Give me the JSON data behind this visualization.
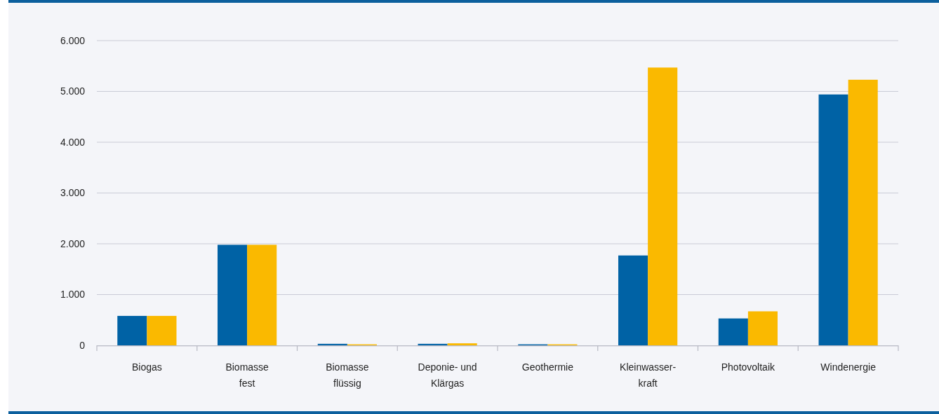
{
  "chart_data": {
    "type": "bar",
    "categories": [
      "Biogas",
      "Biomasse fest",
      "Biomasse flüssig",
      "Deponie- und Klärgas",
      "Geothermie",
      "Kleinwasser-kraft",
      "Photovoltaik",
      "Windenergie"
    ],
    "series": [
      {
        "color": "#0062a5",
        "values": [
          580,
          1980,
          30,
          30,
          20,
          1770,
          530,
          4940
        ]
      },
      {
        "color": "#fab900",
        "values": [
          580,
          1980,
          20,
          40,
          20,
          5470,
          670,
          5230
        ]
      }
    ],
    "ylim": [
      0,
      6000
    ],
    "yticks": [
      {
        "value": 0,
        "label": "0"
      },
      {
        "value": 1000,
        "label": "1.000"
      },
      {
        "value": 2000,
        "label": "2.000"
      },
      {
        "value": 3000,
        "label": "3.000"
      },
      {
        "value": 4000,
        "label": "4.000"
      },
      {
        "value": 5000,
        "label": "5.000"
      },
      {
        "value": 6000,
        "label": "6.000"
      }
    ],
    "grid": "y"
  }
}
